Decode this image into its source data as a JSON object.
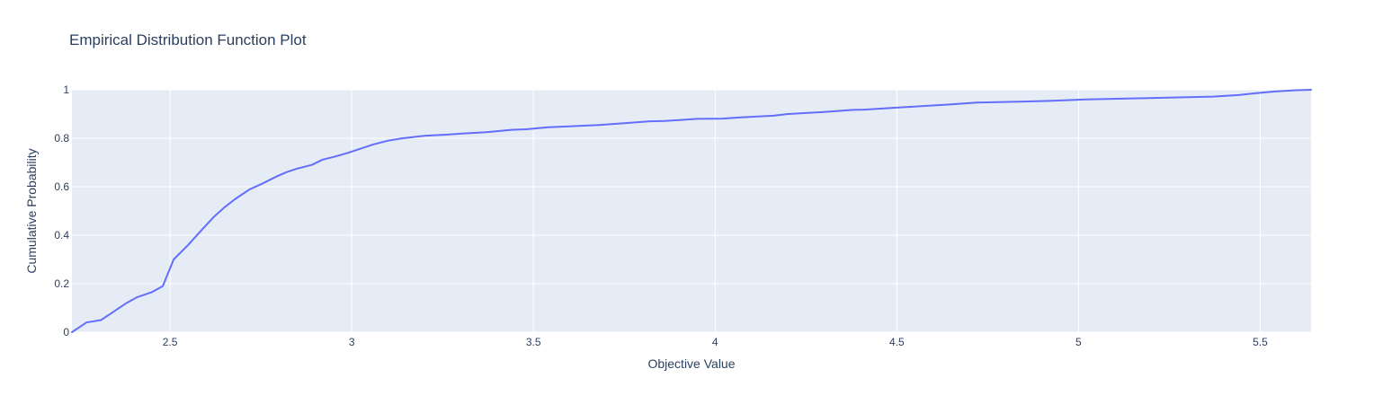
{
  "chart_data": {
    "type": "line",
    "title": "Empirical Distribution Function Plot",
    "xlabel": "Objective Value",
    "ylabel": "Cumulative Probability",
    "xlim": [
      2.23,
      5.64
    ],
    "ylim": [
      0,
      1
    ],
    "x_ticks": [
      2.5,
      3,
      3.5,
      4,
      4.5,
      5,
      5.5
    ],
    "x_tick_labels": [
      "2.5",
      "3",
      "3.5",
      "4",
      "4.5",
      "5",
      "5.5"
    ],
    "y_ticks": [
      0,
      0.2,
      0.4,
      0.6,
      0.8,
      1
    ],
    "y_tick_labels": [
      "0",
      "0.2",
      "0.4",
      "0.6",
      "0.8",
      "1"
    ],
    "grid": true,
    "colors": {
      "line": "#636efa",
      "plot_bg": "#e5ecf6",
      "grid": "#ffffff",
      "text": "#2a3f5f"
    },
    "series": [
      {
        "x": [
          2.23,
          2.27,
          2.31,
          2.34,
          2.38,
          2.41,
          2.45,
          2.48,
          2.51,
          2.55,
          2.58,
          2.62,
          2.65,
          2.68,
          2.72,
          2.75,
          2.79,
          2.82,
          2.85,
          2.89,
          2.92,
          2.95,
          2.99,
          3.02,
          3.06,
          3.1,
          3.14,
          3.2,
          3.26,
          3.31,
          3.37,
          3.44,
          3.48,
          3.54,
          3.61,
          3.68,
          3.75,
          3.82,
          3.86,
          3.95,
          4.02,
          4.07,
          4.16,
          4.2,
          4.3,
          4.38,
          4.41,
          4.52,
          4.64,
          4.72,
          4.92,
          5.02,
          5.18,
          5.37,
          5.44,
          5.49,
          5.54,
          5.6,
          5.64
        ],
        "values": [
          0.0,
          0.04,
          0.05,
          0.08,
          0.12,
          0.145,
          0.165,
          0.19,
          0.3,
          0.36,
          0.41,
          0.475,
          0.515,
          0.55,
          0.59,
          0.61,
          0.64,
          0.66,
          0.675,
          0.69,
          0.712,
          0.723,
          0.74,
          0.755,
          0.775,
          0.79,
          0.8,
          0.81,
          0.815,
          0.82,
          0.825,
          0.835,
          0.837,
          0.845,
          0.85,
          0.855,
          0.862,
          0.87,
          0.871,
          0.88,
          0.881,
          0.886,
          0.893,
          0.9,
          0.908,
          0.917,
          0.918,
          0.928,
          0.939,
          0.947,
          0.954,
          0.96,
          0.965,
          0.972,
          0.978,
          0.986,
          0.993,
          0.998,
          1.0
        ]
      }
    ]
  }
}
